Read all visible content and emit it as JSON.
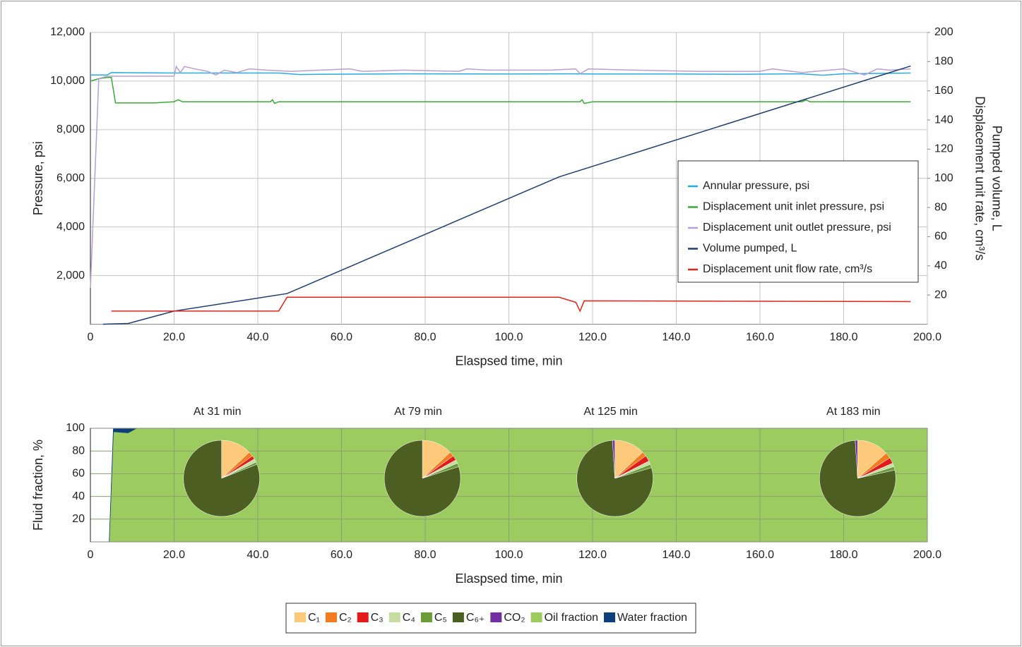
{
  "chart_data": [
    {
      "type": "line",
      "xlabel": "Elaspsed time, min",
      "ylabel": "Pressure, psi",
      "y2label": [
        "Pumped volume, L",
        "Displacement unit rate, cm³/s"
      ],
      "xlim": [
        0,
        200
      ],
      "xticks": [
        0,
        {
          "value": 20,
          "label": "20.0"
        },
        {
          "value": 40,
          "label": "40.0"
        },
        {
          "value": 60,
          "label": "60.0"
        },
        {
          "value": 80,
          "label": "80.0"
        },
        {
          "value": 100,
          "label": "100.0"
        },
        {
          "value": 120,
          "label": "120.0"
        },
        {
          "value": 140,
          "label": "140.0"
        },
        {
          "value": 160,
          "label": "160.0"
        },
        {
          "value": 180,
          "label": "180.0"
        },
        {
          "value": 200,
          "label": "200.0"
        }
      ],
      "ylim": [
        0,
        12000
      ],
      "yticks": [
        {
          "value": 2000,
          "label": "2,000"
        },
        {
          "value": 4000,
          "label": "4,000"
        },
        {
          "value": 6000,
          "label": "6,000"
        },
        {
          "value": 8000,
          "label": "8,000"
        },
        {
          "value": 10000,
          "label": "10,000"
        },
        {
          "value": 12000,
          "label": "12,000"
        }
      ],
      "y2lim": [
        0,
        200
      ],
      "y2ticks": [
        20,
        40,
        60,
        80,
        100,
        120,
        140,
        160,
        180,
        200
      ],
      "grid": true,
      "legend": "center right",
      "series": [
        {
          "name": "Annular pressure, psi",
          "color": "#29abe2",
          "x": [
            0,
            4,
            5,
            20,
            45,
            50,
            55,
            70,
            75,
            100,
            115,
            120,
            140,
            155,
            170,
            175,
            180,
            196
          ],
          "values": [
            10250,
            10250,
            10350,
            10330,
            10330,
            10270,
            10280,
            10290,
            10300,
            10290,
            10300,
            10290,
            10290,
            10280,
            10300,
            10240,
            10300,
            10330
          ]
        },
        {
          "name": "Displacement unit inlet pressure, psi",
          "color": "#3aaa35",
          "x": [
            0,
            2,
            4,
            5,
            6,
            15,
            20,
            21,
            22,
            43,
            43.5,
            44,
            45,
            117,
            117.5,
            118,
            120,
            170,
            171,
            172,
            196
          ],
          "values": [
            10000,
            10100,
            10150,
            10150,
            9100,
            9100,
            9150,
            9230,
            9150,
            9150,
            9230,
            9080,
            9150,
            9150,
            9230,
            9080,
            9150,
            9150,
            9220,
            9150,
            9150
          ]
        },
        {
          "name": "Displacement unit outlet pressure, psi",
          "color": "#b9a0d0",
          "x": [
            0,
            2,
            4,
            20,
            20.5,
            21.5,
            22.5,
            25,
            28,
            30,
            32,
            35,
            38,
            42,
            48,
            55,
            62,
            65,
            75,
            88,
            90,
            95,
            110,
            116,
            117,
            119,
            130,
            145,
            160,
            163,
            170,
            180,
            185,
            188,
            191,
            196
          ],
          "values": [
            1500,
            10100,
            10200,
            10200,
            10600,
            10350,
            10600,
            10500,
            10400,
            10250,
            10450,
            10350,
            10500,
            10450,
            10400,
            10450,
            10500,
            10400,
            10450,
            10400,
            10500,
            10450,
            10450,
            10500,
            10300,
            10500,
            10450,
            10400,
            10400,
            10500,
            10350,
            10500,
            10250,
            10500,
            10450,
            10500
          ]
        },
        {
          "name": "Volume pumped, L",
          "color": "#1f3e6e",
          "axis": "y2",
          "x": [
            3,
            9,
            20,
            47,
            112,
            196
          ],
          "values": [
            0,
            0.5,
            9,
            21,
            101,
            177
          ]
        },
        {
          "name": "Displacement unit flow rate, cm³/s",
          "color": "#e2231a",
          "axis": "y2",
          "x": [
            5,
            45,
            47,
            112,
            116,
            117,
            118,
            196
          ],
          "values": [
            9,
            9,
            18.5,
            18.5,
            15,
            9,
            16,
            15.5
          ]
        }
      ]
    },
    {
      "type": "area",
      "xlabel": "Elaspsed time, min",
      "ylabel": "Fluid fraction, %",
      "xlim": [
        0,
        200
      ],
      "xticks": [
        0,
        {
          "value": 20,
          "label": "20.0"
        },
        {
          "value": 40,
          "label": "40.0"
        },
        {
          "value": 60,
          "label": "60.0"
        },
        {
          "value": 80,
          "label": "80.0"
        },
        {
          "value": 100,
          "label": "100.0"
        },
        {
          "value": 120,
          "label": "120.0"
        },
        {
          "value": 140,
          "label": "140.0"
        },
        {
          "value": 160,
          "label": "160.0"
        },
        {
          "value": 180,
          "label": "180.0"
        },
        {
          "value": 200,
          "label": "200.0"
        }
      ],
      "ylim": [
        0,
        100
      ],
      "yticks": [
        20,
        40,
        60,
        80,
        100
      ],
      "grid": true,
      "x": [
        0,
        4.5,
        5.5,
        9,
        10,
        11,
        200
      ],
      "series": [
        {
          "name": "Oil fraction",
          "color": "#9ccc60",
          "values": [
            0,
            0,
            97,
            96,
            98,
            100,
            100
          ]
        },
        {
          "name": "Water fraction",
          "color": "#0d3f7a",
          "values": [
            0,
            0,
            3,
            4,
            2,
            0,
            0
          ]
        }
      ]
    },
    {
      "type": "pie",
      "title": "At 31 min",
      "at": 31,
      "values": [
        13,
        2,
        1.5,
        1.5,
        1,
        81,
        0
      ]
    },
    {
      "type": "pie",
      "title": "At 79 min",
      "at": 79,
      "values": [
        13,
        2,
        2,
        1.5,
        1.5,
        80,
        0
      ]
    },
    {
      "type": "pie",
      "title": "At 125 min",
      "at": 125,
      "values": [
        13,
        2,
        2.5,
        1.5,
        1.5,
        78.5,
        1
      ]
    },
    {
      "type": "pie",
      "title": "At 183 min",
      "at": 183,
      "values": [
        13.5,
        2.5,
        2.5,
        1.5,
        1.5,
        77.5,
        1
      ]
    }
  ],
  "composition": {
    "categories": [
      "C₁",
      "C₂",
      "C₃",
      "C₄",
      "C₅",
      "C₆₊",
      "CO₂"
    ],
    "colors": [
      "#fdc97a",
      "#f47b20",
      "#e31a1c",
      "#c7dca0",
      "#6b9a3a",
      "#4d5e23",
      "#7030a0"
    ]
  }
}
